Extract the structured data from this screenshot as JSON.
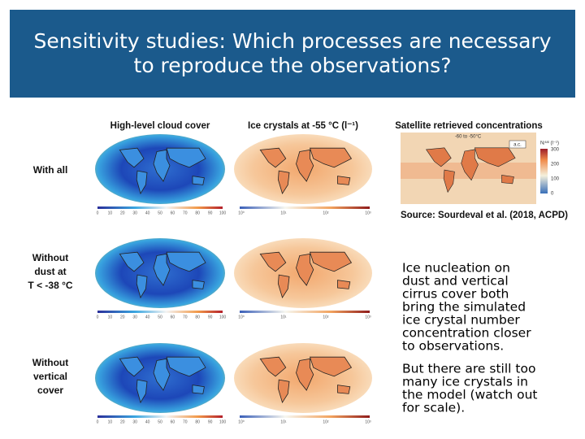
{
  "title": {
    "lines": [
      "Sensitivity studies: Which processes are necessary",
      "to reproduce the observations?"
    ]
  },
  "columns": [
    "High-level cloud cover",
    "Ice crystals at -55 °C (l⁻¹)",
    "Satellite retrieved concentrations"
  ],
  "rows": [
    [
      "With all"
    ],
    [
      "Without",
      "dust at",
      "T < -38 °C"
    ],
    [
      "Without",
      "vertical",
      "cover"
    ]
  ],
  "cover_scale": [
    "0",
    "10",
    "20",
    "30",
    "40",
    "50",
    "60",
    "70",
    "80",
    "90",
    "100"
  ],
  "ice_scale": [
    "10⁰",
    "10¹",
    "10²",
    "10³"
  ],
  "satellite": {
    "range": "-60 to -50°C",
    "panel": "a.c.",
    "unit": "Nᵢˢᵃᵗ (l⁻¹)",
    "scale": [
      "300",
      "200",
      "100",
      "0"
    ],
    "source": "Source: Sourdeval et al. (2018, ACPD)"
  },
  "text": {
    "paragraphs": [
      [
        "Ice nucleation on",
        "dust and vertical",
        "cirrus cover both",
        "bring the simulated",
        "ice crystal number",
        "concentration closer",
        "to observations."
      ],
      [
        "But there are still too",
        "many ice crystals in",
        "the model (watch out",
        "for scale)."
      ]
    ]
  }
}
